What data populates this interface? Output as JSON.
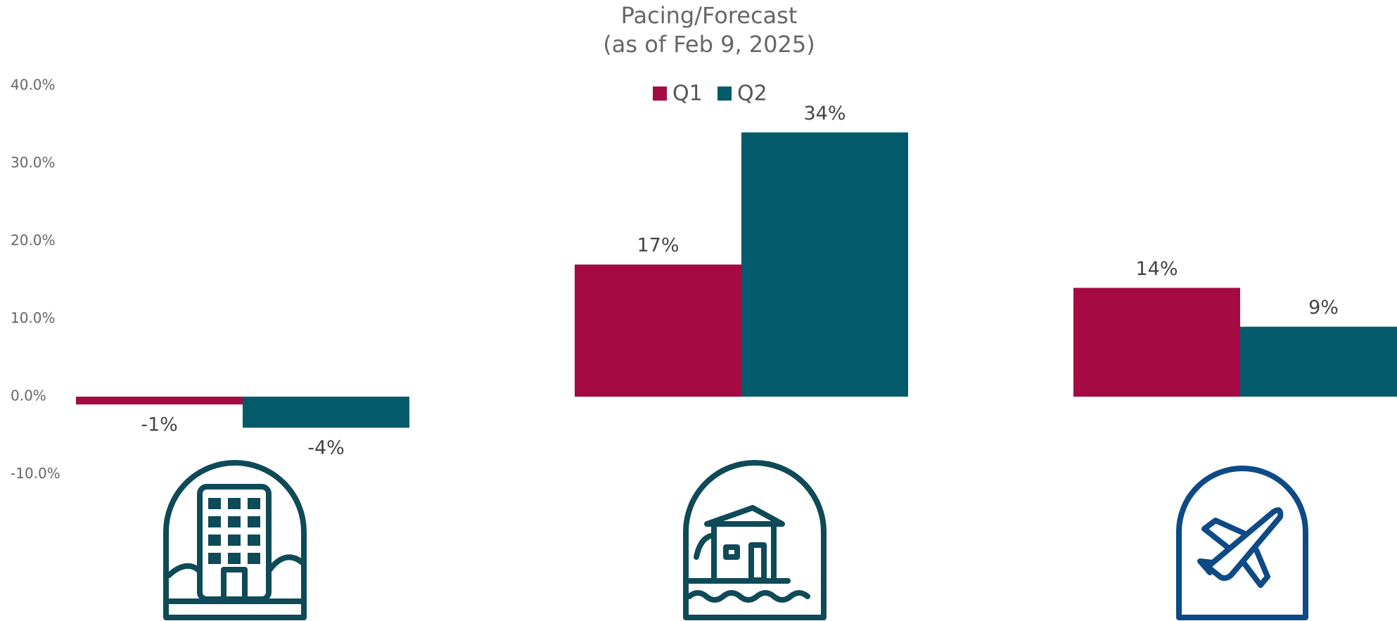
{
  "chart_data": {
    "type": "bar",
    "title": "Pacing/Forecast",
    "subtitle": "(as of Feb 9, 2025)",
    "categories": [
      null,
      null,
      null
    ],
    "series": [
      {
        "name": "Q1",
        "color": "#a50a42",
        "values": [
          -1,
          17,
          14
        ],
        "value_labels": [
          "-1%",
          "17%",
          "14%"
        ]
      },
      {
        "name": "Q2",
        "color": "#025a6a",
        "values": [
          -4,
          34,
          9
        ],
        "value_labels": [
          "-4%",
          "34%",
          "9%"
        ]
      }
    ],
    "ylim": [
      -10,
      40
    ],
    "yticks": [
      {
        "value": -10,
        "label": "-10.0%"
      },
      {
        "value": 0,
        "label": "0.0%"
      },
      {
        "value": 10,
        "label": "10.0%"
      },
      {
        "value": 20,
        "label": "20.0%"
      },
      {
        "value": 30,
        "label": "30.0%"
      },
      {
        "value": 40,
        "label": "40.0%"
      }
    ],
    "grid": false,
    "legend": "top"
  }
}
